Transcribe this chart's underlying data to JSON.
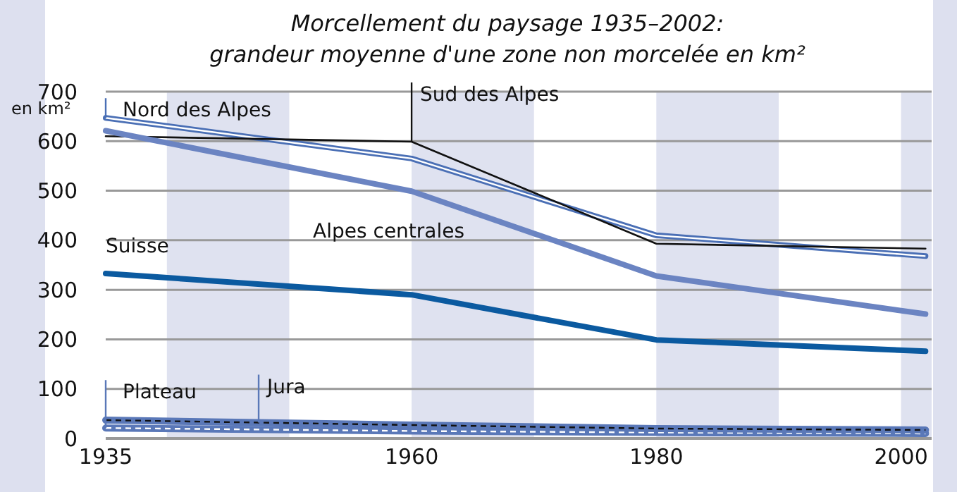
{
  "chart_data": {
    "type": "line",
    "title": "Morcellement du paysage 1935–2002:",
    "subtitle": "grandeur moyenne d'une zone non morcelée en km²",
    "ylabel": "en km²",
    "x": [
      1935,
      1960,
      1980,
      2002
    ],
    "series": [
      {
        "name": "Nord des Alpes",
        "color": "#4a6fb5",
        "values": [
          647,
          565,
          410,
          368
        ]
      },
      {
        "name": "Sud des Alpes",
        "color": "#111111",
        "values": [
          610,
          599,
          393,
          383
        ]
      },
      {
        "name": "Alpes centrales",
        "color": "#6b84c2",
        "values": [
          621,
          499,
          328,
          251
        ]
      },
      {
        "name": "Suisse",
        "color": "#0b5aa0",
        "values": [
          333,
          290,
          199,
          176
        ]
      },
      {
        "name": "Plateau",
        "color": "#5a78b8",
        "values": [
          21,
          15,
          12,
          10
        ]
      },
      {
        "name": "Jura",
        "color": "#5a78b8",
        "values": [
          37,
          27,
          20,
          17
        ]
      }
    ],
    "xlim": [
      1935,
      2002.5
    ],
    "xticks": [
      1935,
      1960,
      1980,
      2000
    ],
    "ylim": [
      0,
      700
    ],
    "yticks": [
      0,
      100,
      200,
      300,
      400,
      500,
      600,
      700
    ],
    "grid": "y",
    "bands": [
      {
        "axis": "x",
        "from": 1940,
        "to": 1950,
        "color": "#dfe2f0"
      },
      {
        "axis": "x",
        "from": 1960,
        "to": 1970,
        "color": "#dfe2f0"
      },
      {
        "axis": "x",
        "from": 1980,
        "to": 1990,
        "color": "#dfe2f0"
      },
      {
        "axis": "x",
        "from": 2000,
        "to": 2002.5,
        "color": "#dfe2f0"
      }
    ]
  }
}
